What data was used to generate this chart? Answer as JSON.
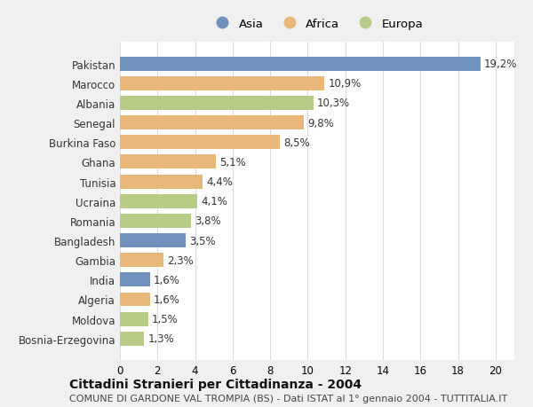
{
  "countries": [
    "Pakistan",
    "Marocco",
    "Albania",
    "Senegal",
    "Burkina Faso",
    "Ghana",
    "Tunisia",
    "Ucraina",
    "Romania",
    "Bangladesh",
    "Gambia",
    "India",
    "Algeria",
    "Moldova",
    "Bosnia-Erzegovina"
  ],
  "values": [
    19.2,
    10.9,
    10.3,
    9.8,
    8.5,
    5.1,
    4.4,
    4.1,
    3.8,
    3.5,
    2.3,
    1.6,
    1.6,
    1.5,
    1.3
  ],
  "continents": [
    "Asia",
    "Africa",
    "Europa",
    "Africa",
    "Africa",
    "Africa",
    "Africa",
    "Europa",
    "Europa",
    "Asia",
    "Africa",
    "Asia",
    "Africa",
    "Europa",
    "Europa"
  ],
  "colors": {
    "Asia": "#7090be",
    "Africa": "#e8b87a",
    "Europa": "#b8cc88"
  },
  "xlim": [
    0,
    21
  ],
  "xticks": [
    0,
    2,
    4,
    6,
    8,
    10,
    12,
    14,
    16,
    18,
    20
  ],
  "title": "Cittadini Stranieri per Cittadinanza - 2004",
  "subtitle": "COMUNE DI GARDONE VAL TROMPIA (BS) - Dati ISTAT al 1° gennaio 2004 - TUTTITALIA.IT",
  "background_color": "#f0f0f0",
  "plot_background": "#ffffff",
  "bar_height": 0.72,
  "label_fontsize": 8.5,
  "value_fontsize": 8.5,
  "title_fontsize": 10,
  "subtitle_fontsize": 8
}
